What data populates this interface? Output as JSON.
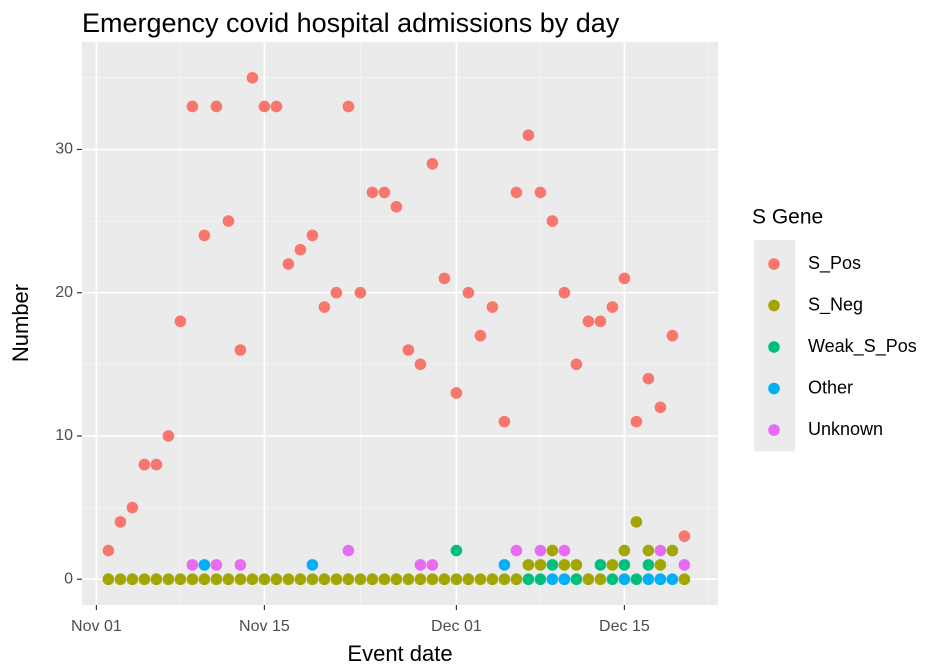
{
  "chart_data": {
    "type": "scatter",
    "title": "Emergency covid hospital admissions by day",
    "x_label": "Event date",
    "y_label": "Number",
    "legend_title": "S Gene",
    "legend_position": "right",
    "grid": true,
    "xlim": [
      -1.2,
      51.8
    ],
    "xticks": [
      {
        "value": 0,
        "label": "Nov 01"
      },
      {
        "value": 14,
        "label": "Nov 15"
      },
      {
        "value": 30,
        "label": "Dec 01"
      },
      {
        "value": 44,
        "label": "Dec 15"
      }
    ],
    "ylim": [
      -1.8,
      37.5
    ],
    "yticks": [
      0,
      10,
      20,
      30
    ],
    "series": [
      {
        "name": "S_Pos",
        "color": "#f8766d",
        "x": [
          1,
          2,
          3,
          4,
          5,
          6,
          7,
          8,
          9,
          10,
          11,
          12,
          13,
          14,
          15,
          16,
          17,
          18,
          19,
          20,
          21,
          22,
          23,
          24,
          25,
          26,
          27,
          28,
          29,
          30,
          31,
          32,
          33,
          34,
          35,
          36,
          37,
          38,
          39,
          40,
          41,
          42,
          43,
          44,
          45,
          46,
          47,
          48,
          49
        ],
        "values": [
          2,
          4,
          5,
          8,
          8,
          10,
          18,
          33,
          24,
          33,
          25,
          16,
          35,
          33,
          33,
          22,
          23,
          24,
          19,
          20,
          33,
          20,
          27,
          27,
          26,
          16,
          15,
          29,
          21,
          13,
          20,
          17,
          19,
          11,
          27,
          31,
          27,
          25,
          20,
          15,
          18,
          18,
          19,
          21,
          11,
          14,
          12,
          17,
          3
        ]
      },
      {
        "name": "S_Neg",
        "color": "#a3a500",
        "x": [
          1,
          2,
          3,
          4,
          5,
          6,
          7,
          8,
          9,
          10,
          11,
          12,
          13,
          14,
          15,
          16,
          17,
          18,
          19,
          20,
          21,
          22,
          23,
          24,
          25,
          26,
          27,
          28,
          29,
          30,
          31,
          32,
          33,
          34,
          35,
          36,
          37,
          38,
          39,
          40,
          41,
          42,
          43,
          44,
          45,
          46,
          47,
          48,
          49
        ],
        "values": [
          0,
          0,
          0,
          0,
          0,
          0,
          0,
          0,
          0,
          0,
          0,
          0,
          0,
          0,
          0,
          0,
          0,
          0,
          0,
          0,
          0,
          0,
          0,
          0,
          0,
          0,
          0,
          0,
          0,
          0,
          0,
          0,
          0,
          0,
          0,
          1,
          1,
          2,
          1,
          1,
          0,
          0,
          1,
          2,
          4,
          2,
          1,
          2,
          0
        ]
      },
      {
        "name": "Weak_S_Pos",
        "color": "#00bf7d",
        "x": [
          30,
          36,
          37,
          38,
          39,
          40,
          42,
          43,
          44,
          45,
          46,
          47
        ],
        "values": [
          2,
          0,
          0,
          1,
          0,
          0,
          1,
          0,
          1,
          0,
          1,
          0
        ]
      },
      {
        "name": "Other",
        "color": "#00b0f6",
        "x": [
          9,
          18,
          34,
          38,
          39,
          44,
          46,
          47,
          48
        ],
        "values": [
          1,
          1,
          1,
          0,
          0,
          0,
          0,
          0,
          0
        ]
      },
      {
        "name": "Unknown",
        "color": "#e76bf3",
        "x": [
          8,
          10,
          12,
          21,
          27,
          28,
          35,
          37,
          39,
          47,
          49
        ],
        "values": [
          1,
          1,
          1,
          2,
          1,
          1,
          2,
          2,
          2,
          2,
          1
        ]
      }
    ]
  }
}
